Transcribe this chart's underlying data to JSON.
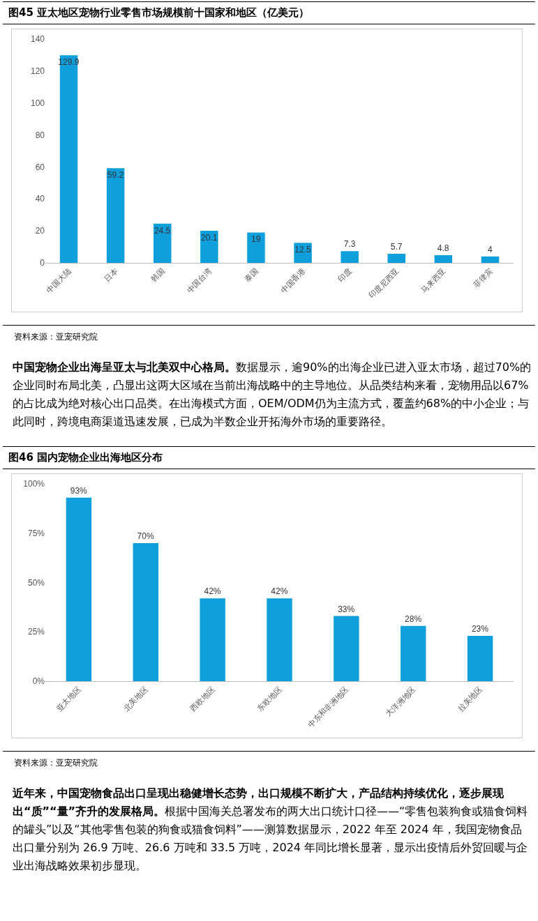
{
  "chart_data": [
    {
      "type": "bar",
      "title": "图45  亚太地区宠物行业零售市场规模前十国家和地区（亿美元）",
      "categories": [
        "中国大陆",
        "日本",
        "韩国",
        "中国台湾",
        "泰国",
        "中国香港",
        "印度",
        "印度尼西亚",
        "马来西亚",
        "菲律宾"
      ],
      "values": [
        129.9,
        59.2,
        24.5,
        20.1,
        19,
        12.5,
        7.3,
        5.7,
        4.8,
        4
      ],
      "color": "#0e9fdc",
      "data_labels": true,
      "grid": false,
      "ylim": [
        0,
        140
      ],
      "yticks": [
        0,
        20,
        40,
        60,
        80,
        100,
        120,
        140
      ],
      "annotations": [
        "资料来源：亚宠研究院",
        "中国宠物企业出海呈亚太与北美双中心格局。",
        "数据显示，逾90%的出海企业已进入亚太市场，超过70%的企业同时布局北美，凸显出这两大区域在当前出海战略中的主导地位。从品类结构来看，宠物用品以67%的占比成为绝对核心出口品类。在出海模式方面，OEM/ODM仍为主流方式，覆盖约68%的中小企业；与此同时，跨境电商渠道迅速发展，已成为半数企业开拓海外市场的重要路径。"
      ]
    },
    {
      "type": "bar",
      "title": "图46  国内宠物企业出海地区分布",
      "categories": [
        "亚太地区",
        "北美地区",
        "西欧地区",
        "东欧地区",
        "中东和非洲地区",
        "大洋洲地区",
        "拉美地区"
      ],
      "values": [
        93,
        70,
        42,
        42,
        33,
        28,
        23
      ],
      "value_labels": [
        "93%",
        "70%",
        "42%",
        "42%",
        "33%",
        "28%",
        "23%"
      ],
      "color": "#0e9fdc",
      "grid": false,
      "ylim": [
        0,
        100
      ],
      "yticks": [
        {
          "value": 0,
          "label": "0%"
        },
        {
          "value": 25,
          "label": "25%"
        },
        {
          "value": 50,
          "label": "50%"
        },
        {
          "value": 75,
          "label": "75%"
        },
        {
          "value": 100,
          "label": "100%"
        }
      ],
      "annotations": [
        "资料来源：亚宠研究院",
        "近年来，中国宠物食品出口呈现出稳健增长态势，出口规模不断扩大，产品结构持续优化，逐步展现出“质”“量”齐升的发展格局。",
        "根据中国海关总署发布的两大出口统计口径——“零售包装狗食或猫食饲料的罐头”以及“其他零售包装的狗食或猫食饲料”——测算数据显示，2022 年至 2024 年，我国宠物食品出口量分别为 26.9 万吨、26.6 万吨和 33.5 万吨，2024 年同比增长显著，显示出疫情后外贸回暖与企业出海战略效果初步显现。"
      ]
    }
  ]
}
